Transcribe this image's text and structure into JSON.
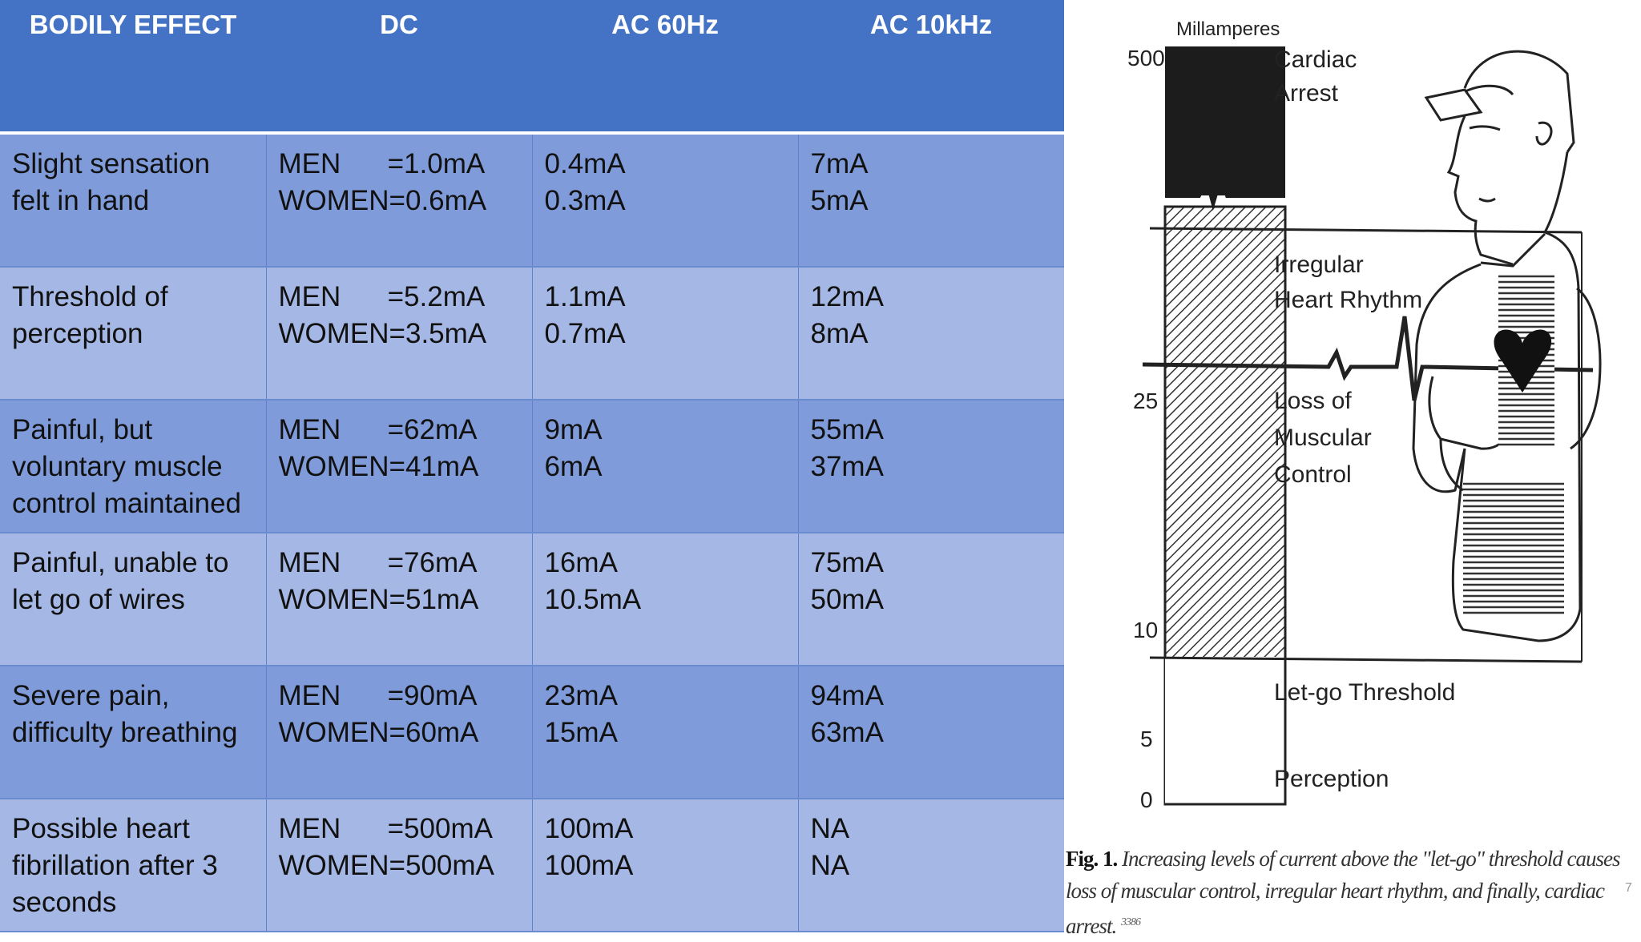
{
  "table": {
    "headers": [
      "BODILY EFFECT",
      "DC",
      "AC 60Hz",
      "AC 10kHz"
    ],
    "rows": [
      {
        "effect": [
          "Slight sensation",
          "felt in hand"
        ],
        "dc": [
          "MEN      =1.0mA",
          "WOMEN=0.6mA"
        ],
        "ac60": [
          "0.4mA",
          "0.3mA"
        ],
        "ac10k": [
          "7mA",
          "5mA"
        ]
      },
      {
        "effect": [
          "Threshold of",
          "perception"
        ],
        "dc": [
          "MEN      =5.2mA",
          "WOMEN=3.5mA"
        ],
        "ac60": [
          "1.1mA",
          "0.7mA"
        ],
        "ac10k": [
          "12mA",
          "8mA"
        ]
      },
      {
        "effect": [
          "Painful, but",
          "voluntary muscle",
          "control maintained"
        ],
        "dc": [
          "MEN      =62mA",
          "WOMEN=41mA"
        ],
        "ac60": [
          "9mA",
          "6mA"
        ],
        "ac10k": [
          "55mA",
          "37mA"
        ]
      },
      {
        "effect": [
          "Painful, unable to",
          "let go of wires"
        ],
        "dc": [
          "MEN      =76mA",
          "WOMEN=51mA"
        ],
        "ac60": [
          "16mA",
          "10.5mA"
        ],
        "ac10k": [
          "75mA",
          "50mA"
        ]
      },
      {
        "effect": [
          "Severe pain,",
          "difficulty breathing"
        ],
        "dc": [
          "MEN      =90mA",
          "WOMEN=60mA"
        ],
        "ac60": [
          "23mA",
          "15mA"
        ],
        "ac10k": [
          "94mA",
          "63mA"
        ]
      },
      {
        "effect": [
          "Possible heart",
          "fibrillation after 3",
          "seconds"
        ],
        "dc": [
          "MEN      =500mA",
          "WOMEN=500mA"
        ],
        "ac60": [
          "100mA",
          "100mA"
        ],
        "ac10k": [
          "NA",
          "NA"
        ]
      }
    ]
  },
  "figure": {
    "axis_title": "Millamperes",
    "ticks": [
      "500",
      "25",
      "10",
      "5",
      "0"
    ],
    "labels": {
      "cardiac": [
        "Cardiac",
        "Arrest"
      ],
      "irregular": [
        "Irregular",
        "Heart Rhythm"
      ],
      "muscular": [
        "Loss of",
        "Muscular",
        "Control"
      ],
      "letgo": "Let-go Threshold",
      "perception": "Perception"
    },
    "caption_bold": "Fig. 1.",
    "caption_text": "Increasing levels of current above the \"let-go\" threshold causes loss of muscular control, irregular heart rhythm, and finally, cardiac arrest.",
    "caption_ref": "3386",
    "page_mark": "7"
  }
}
